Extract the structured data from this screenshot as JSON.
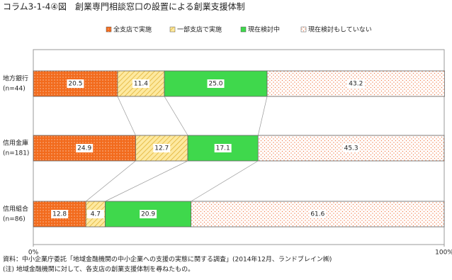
{
  "chart_data": {
    "type": "stacked-bar-horizontal",
    "title": "コラム3-1-4④図　創業専門相談窓口の設置による創業支援体制",
    "categories": [
      "地方銀行",
      "信用金庫",
      "信用組合"
    ],
    "category_notes": [
      "(n=44)",
      "(n=181)",
      "(n=86)"
    ],
    "series": [
      {
        "name": "全支店で実施",
        "color": "#f26b1d",
        "values": [
          20.5,
          24.9,
          12.8
        ]
      },
      {
        "name": "一部支店で実施",
        "color": "#fde9a0",
        "values": [
          11.4,
          12.7,
          4.7
        ]
      },
      {
        "name": "現在検討中",
        "color": "#3fd84c",
        "values": [
          25.0,
          17.1,
          20.9
        ]
      },
      {
        "name": "現在検討もしていない",
        "color": "#ffffff",
        "values": [
          43.2,
          45.3,
          61.6
        ]
      }
    ],
    "value_labels": [
      [
        "20.5",
        "24.9",
        "12.8"
      ],
      [
        "11.4",
        "12.7",
        "4.7"
      ],
      [
        "25.0",
        "17.1",
        "20.9"
      ],
      [
        "43.2",
        "45.3",
        "61.6"
      ]
    ],
    "xlim": [
      0,
      100
    ],
    "xticks": [
      {
        "value": 0,
        "label": "0%"
      },
      {
        "value": 100,
        "label": "100%"
      }
    ],
    "notes": [
      "資料：中小企業庁委託「地域金融機関の中小企業への支援の実態に関する調査」(2014年12月、ランドブレイン㈱)",
      "(注) 地域金融機関に対して、各支店の創業支援体制を尋ねたもの。"
    ]
  }
}
